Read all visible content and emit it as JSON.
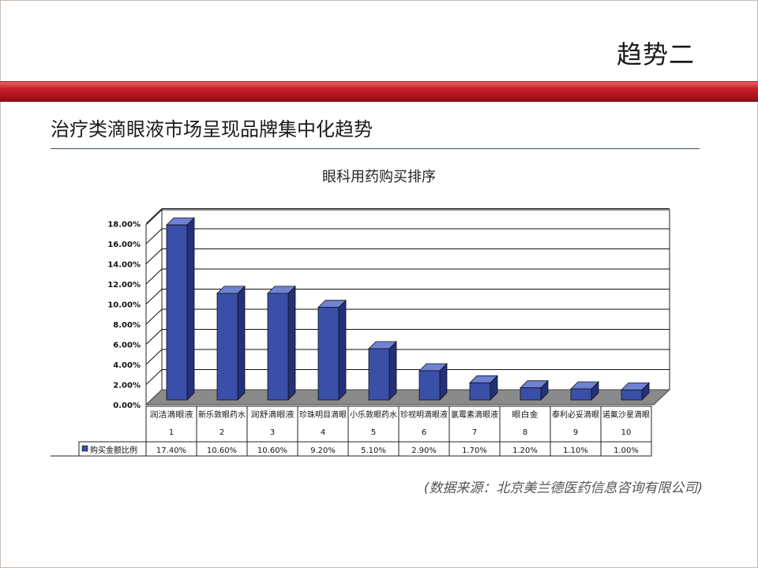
{
  "slide": {
    "title": "趋势二",
    "subtitle": "治疗类滴眼液市场呈现品牌集中化趋势",
    "source": "(数据来源：北京美兰德医药信息咨询有限公司)"
  },
  "chart_data": {
    "type": "bar",
    "title": "眼科用药购买排序",
    "categories": [
      "润洁滴眼液",
      "新乐敦眼药水",
      "润舒滴眼液",
      "珍珠明目滴眼",
      "小乐敦眼药水",
      "珍视明滴眼液",
      "氯霉素滴眼液",
      "眼白金",
      "泰利必妥滴眼",
      "诺氟沙星滴眼"
    ],
    "ranks": [
      "1",
      "2",
      "3",
      "4",
      "5",
      "6",
      "7",
      "8",
      "9",
      "10"
    ],
    "series": [
      {
        "name": "购买金额比例",
        "values": [
          17.4,
          10.6,
          10.6,
          9.2,
          5.1,
          2.9,
          1.7,
          1.2,
          1.1,
          1.0
        ],
        "labels": [
          "17.40%",
          "10.60%",
          "10.60%",
          "9.20%",
          "5.10%",
          "2.90%",
          "1.70%",
          "1.20%",
          "1.10%",
          "1.00%"
        ]
      }
    ],
    "ylim": [
      0,
      18
    ],
    "yticks": [
      "0.00%",
      "2.00%",
      "4.00%",
      "6.00%",
      "8.00%",
      "10.00%",
      "12.00%",
      "14.00%",
      "16.00%",
      "18.00%"
    ],
    "grid": true,
    "legend": "data-table-left",
    "colors": {
      "bar_front": "#3a4fa8",
      "bar_side": "#24307a",
      "bar_top": "#6f82d4",
      "floor": "#8a8a8a"
    }
  }
}
